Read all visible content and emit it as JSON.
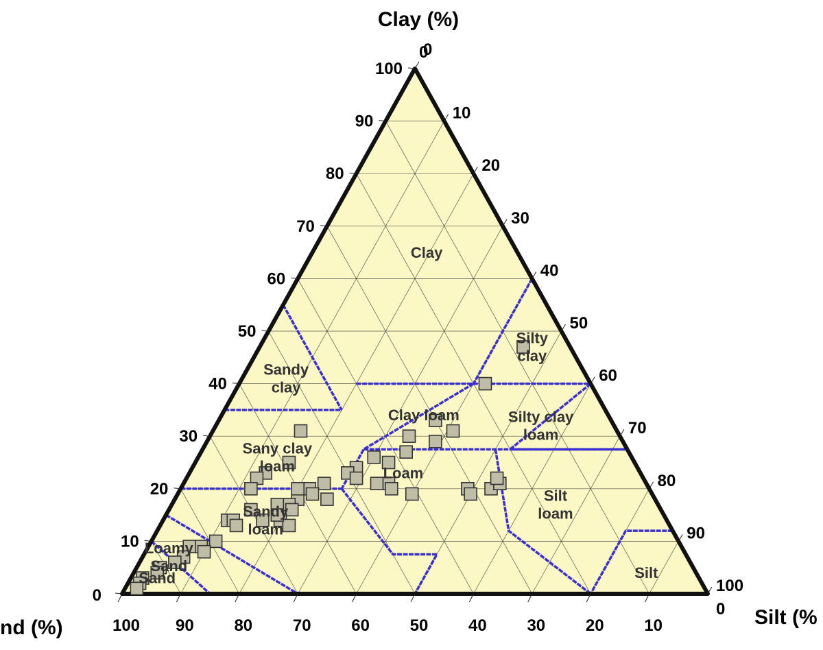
{
  "chart_data": {
    "type": "ternary-scatter",
    "axes": {
      "clay": {
        "label": "Clay (%)",
        "ticks": [
          0,
          10,
          20,
          30,
          40,
          50,
          60,
          70,
          80,
          90,
          100
        ]
      },
      "sand": {
        "label": "nd (%)",
        "ticks": [
          100,
          90,
          80,
          70,
          60,
          50,
          40,
          30,
          20,
          10
        ]
      },
      "silt": {
        "label": "Silt (%",
        "ticks": [
          0,
          10,
          20,
          30,
          40,
          50,
          60,
          70,
          80,
          90,
          100
        ]
      }
    },
    "regions": [
      {
        "name": "clay",
        "text": "Clay",
        "clay": 64,
        "silt": 20
      },
      {
        "name": "sandy-clay",
        "text": [
          "Sandy",
          "clay"
        ],
        "clay": 40,
        "silt": 8
      },
      {
        "name": "silty-clay",
        "text": [
          "Silty",
          "clay"
        ],
        "clay": 46,
        "silt": 47
      },
      {
        "name": "clay-loam",
        "text": "Clay loam",
        "clay": 33,
        "silt": 35
      },
      {
        "name": "silty-clay-loam",
        "text": [
          "Silty clay",
          "loam"
        ],
        "clay": 31,
        "silt": 56
      },
      {
        "name": "sandy-clay-loam",
        "text": [
          "Sany clay",
          "loam"
        ],
        "clay": 25,
        "silt": 14
      },
      {
        "name": "loam",
        "text": "Loam",
        "clay": 22,
        "silt": 37
      },
      {
        "name": "sandy-loam",
        "text": [
          "Sandy",
          "loam"
        ],
        "clay": 13,
        "silt": 18
      },
      {
        "name": "silt-loam",
        "text": [
          "Silt",
          "loam"
        ],
        "clay": 16,
        "silt": 66
      },
      {
        "name": "loamy-sand",
        "text": [
          "Loamy",
          "Sand"
        ],
        "clay": 6,
        "silt": 5
      },
      {
        "name": "sand",
        "text": "Sand",
        "clay": 2,
        "silt": 5
      },
      {
        "name": "silt",
        "text": "Silt",
        "clay": 3,
        "silt": 88
      }
    ],
    "boundaries": [
      [
        [
          55,
          0
        ],
        [
          35,
          20
        ]
      ],
      [
        [
          35,
          0
        ],
        [
          35,
          20
        ]
      ],
      [
        [
          40,
          20
        ],
        [
          40,
          40
        ],
        [
          40,
          60
        ]
      ],
      [
        [
          40,
          40
        ],
        [
          27.5,
          27.5
        ],
        [
          20,
          27.5
        ]
      ],
      [
        [
          20,
          0
        ],
        [
          20,
          27.5
        ]
      ],
      [
        [
          27.5,
          27.5
        ],
        [
          27.5,
          72.5
        ]
      ],
      [
        [
          60,
          40
        ],
        [
          40,
          40
        ]
      ],
      [
        [
          40,
          60
        ],
        [
          27.5,
          52.5
        ],
        [
          27.5,
          72.5
        ]
      ],
      [
        [
          15,
          0
        ],
        [
          0,
          30
        ]
      ],
      [
        [
          10,
          0
        ],
        [
          0,
          15
        ]
      ],
      [
        [
          20,
          27.5
        ],
        [
          7.5,
          42.5
        ],
        [
          7.5,
          50
        ],
        [
          0,
          50
        ]
      ],
      [
        [
          27.5,
          50
        ],
        [
          12,
          60
        ],
        [
          0,
          80
        ]
      ],
      [
        [
          12,
          88
        ],
        [
          12,
          80
        ],
        [
          0,
          80
        ]
      ]
    ],
    "points": [
      [
        47,
        45
      ],
      [
        40,
        42
      ],
      [
        33,
        37
      ],
      [
        31,
        41
      ],
      [
        29,
        39
      ],
      [
        30,
        34
      ],
      [
        27,
        35
      ],
      [
        26,
        30
      ],
      [
        25,
        33
      ],
      [
        31,
        15
      ],
      [
        25,
        16
      ],
      [
        23,
        13
      ],
      [
        22,
        12
      ],
      [
        24,
        28
      ],
      [
        23,
        27
      ],
      [
        22,
        29
      ],
      [
        21,
        24
      ],
      [
        20,
        22
      ],
      [
        19,
        23
      ],
      [
        18,
        21
      ],
      [
        18,
        26
      ],
      [
        20,
        20
      ],
      [
        17,
        20
      ],
      [
        16,
        21
      ],
      [
        14,
        20
      ],
      [
        13,
        22
      ],
      [
        21,
        35
      ],
      [
        20,
        36
      ],
      [
        19,
        40
      ],
      [
        21,
        33
      ],
      [
        20,
        49
      ],
      [
        19,
        50
      ],
      [
        20,
        53
      ],
      [
        21,
        54
      ],
      [
        22,
        53
      ],
      [
        17,
        18
      ],
      [
        15,
        19
      ],
      [
        14,
        17
      ],
      [
        20,
        12
      ],
      [
        16,
        14
      ],
      [
        14,
        11
      ],
      [
        14,
        12
      ],
      [
        13,
        13
      ],
      [
        10,
        11
      ],
      [
        9,
        9
      ],
      [
        8,
        10
      ],
      [
        9,
        7
      ],
      [
        7,
        7
      ],
      [
        6,
        6
      ],
      [
        5,
        4
      ],
      [
        4,
        4
      ],
      [
        3,
        2
      ],
      [
        2,
        2
      ],
      [
        1,
        2
      ]
    ]
  }
}
